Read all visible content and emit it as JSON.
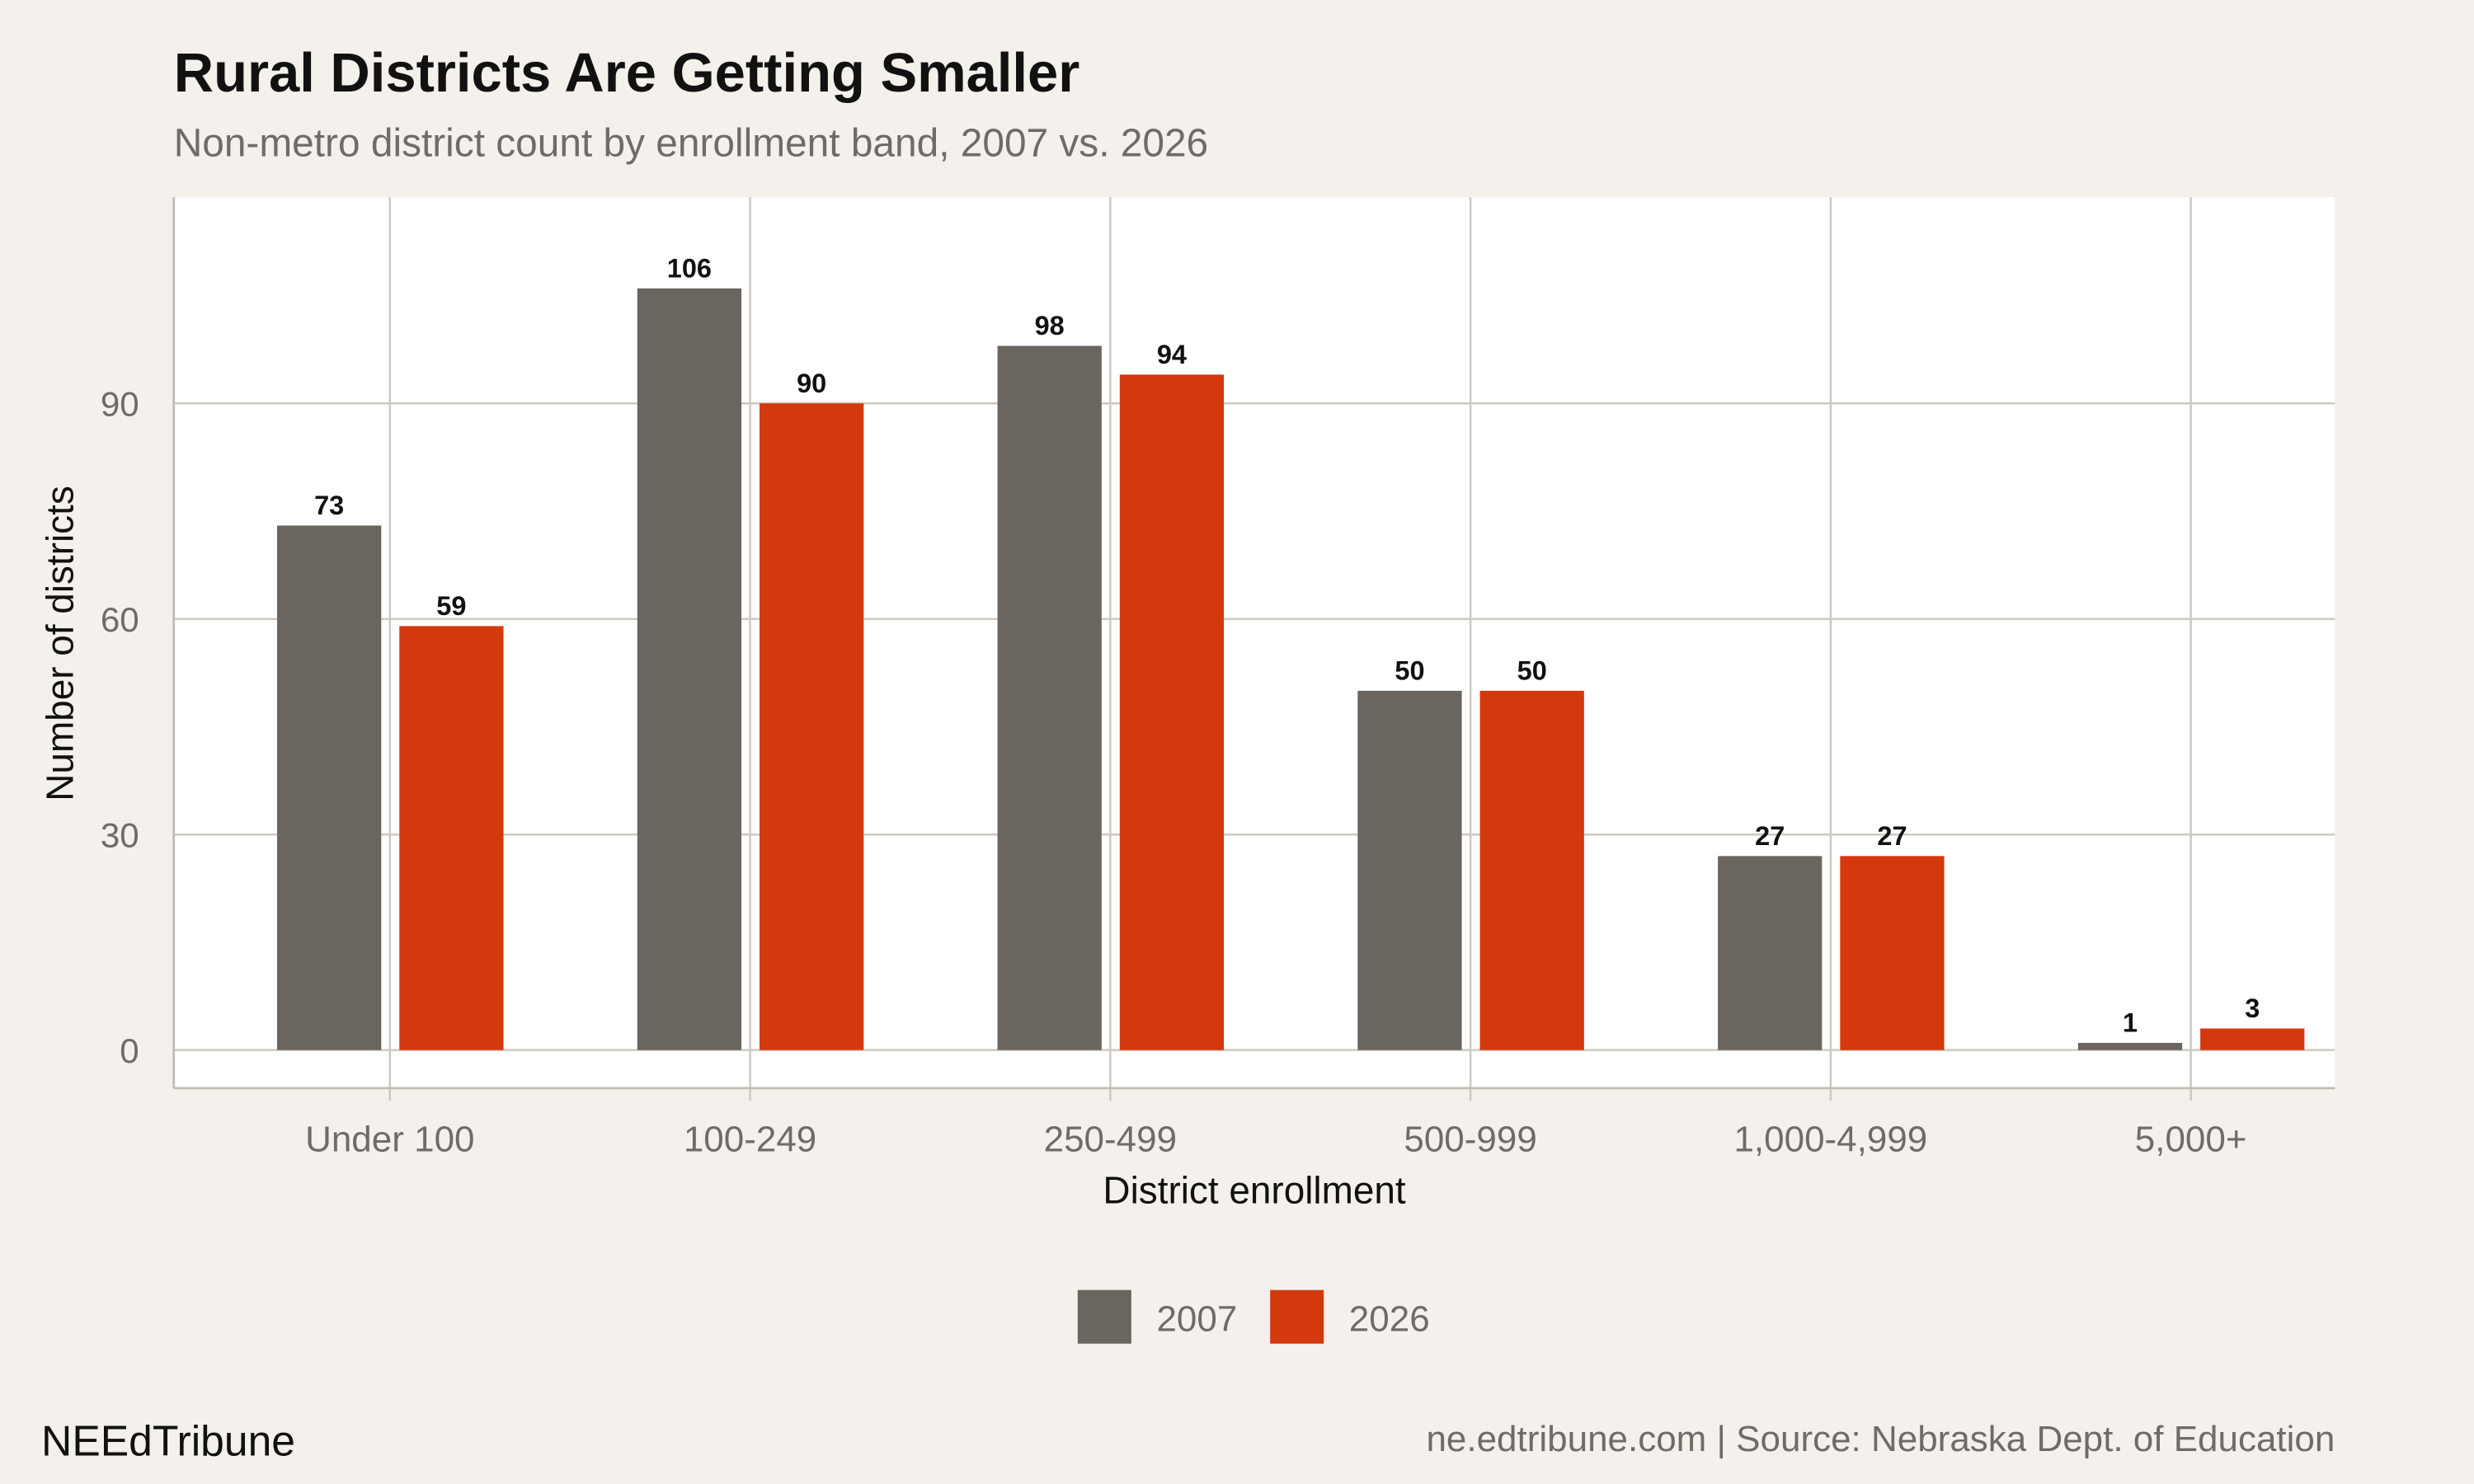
{
  "chart_data": {
    "type": "bar",
    "title": "Rural Districts Are Getting Smaller",
    "subtitle": "Non-metro district count by enrollment band, 2007 vs. 2026",
    "xlabel": "District enrollment",
    "ylabel": "Number of districts",
    "categories": [
      "Under 100",
      "100-249",
      "250-499",
      "500-999",
      "1,000-4,999",
      "5,000+"
    ],
    "series": [
      {
        "name": "2007",
        "values": [
          73,
          106,
          98,
          50,
          27,
          1
        ],
        "color": "#6a655e"
      },
      {
        "name": "2026",
        "values": [
          59,
          90,
          94,
          50,
          27,
          3
        ],
        "color": "#d4380d"
      }
    ],
    "yticks": [
      0,
      30,
      60,
      90
    ],
    "ylim": [
      -5.3,
      118.7
    ],
    "grid": true,
    "legend_position": "bottom",
    "data_labels": true
  },
  "footer": {
    "brand": "NEEdTribune",
    "source": "ne.edtribune.com | Source: Nebraska Dept. of Education"
  },
  "colors": {
    "background": "#f4f1ec",
    "panel": "#ffffff",
    "grid": "#cdc9c2"
  }
}
